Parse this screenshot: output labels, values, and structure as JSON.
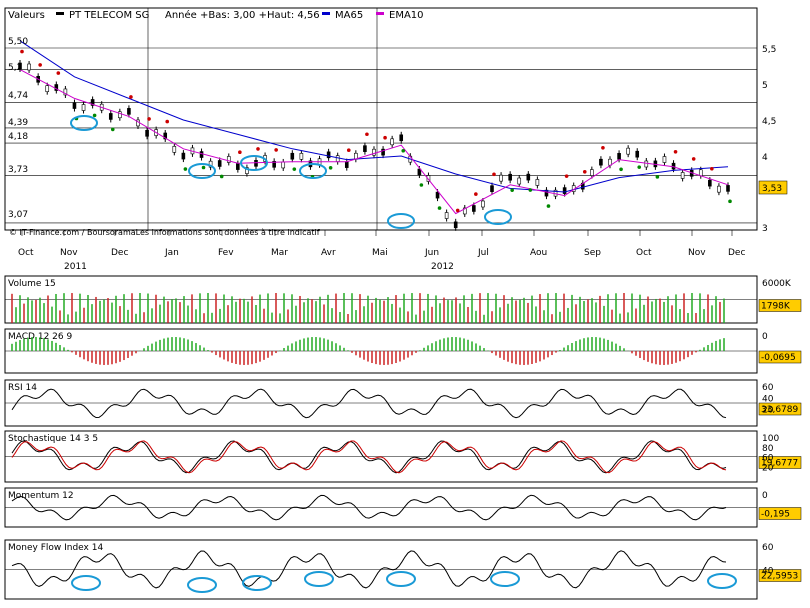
{
  "header": {
    "valeurs_label": "Valeurs",
    "security": "PT TELECOM SG",
    "range_text": "Année +Bas: 3,00 +Haut: 4,56",
    "ma_label": "MA65",
    "ema_label": "EMA10"
  },
  "colors": {
    "candle": "#000000",
    "ma65": "#0000cc",
    "ema10": "#cc00cc",
    "sar_up": "#008800",
    "sar_down": "#cc0000",
    "annotation": "#1a9ad6",
    "value_box": "#ffcc00",
    "volume_up": "#22aa22",
    "volume_down": "#cc2222",
    "volume_ma": "#aa2222"
  },
  "watermark": "© IT-Finance.com / BoursoramaLes informations sont données à titre indicatif",
  "x_axis": {
    "months": [
      "Oct",
      "Nov",
      "Dec",
      "Jan",
      "Fev",
      "Mar",
      "Avr",
      "Mai",
      "Jun",
      "Jul",
      "Aou",
      "Sep",
      "Oct",
      "Nov",
      "Dec"
    ],
    "years": [
      "2011",
      "2012"
    ]
  },
  "price_panel": {
    "left_levels": [
      "5,50",
      "5,2",
      "4,74",
      "4,39",
      "4,18",
      "3,73",
      "3,07"
    ],
    "right_ticks": [
      "5,5",
      "5",
      "4,5",
      "4",
      "3,5",
      "3"
    ],
    "current_value": "3,53"
  },
  "panels": [
    {
      "id": "volume",
      "title": "Volume 15",
      "ticks": [
        "6000K"
      ],
      "value": "1798K"
    },
    {
      "id": "macd",
      "title": "MACD 12 26 9",
      "ticks": [
        "0"
      ],
      "value": "-0,0695"
    },
    {
      "id": "rsi",
      "title": "RSI 14",
      "ticks": [
        "60",
        "40",
        "20"
      ],
      "value": "33,6789"
    },
    {
      "id": "stoch",
      "title": "Stochastique 14 3 5",
      "ticks": [
        "100",
        "80",
        "60",
        "20"
      ],
      "value": "19,6777"
    },
    {
      "id": "momentum",
      "title": "Momentum 12",
      "ticks": [
        "0"
      ],
      "value": "-0,195"
    },
    {
      "id": "mfi",
      "title": "Money Flow Index 14",
      "ticks": [
        "60",
        "40"
      ],
      "value": "22,5953"
    }
  ],
  "chart_data": {
    "type": "line",
    "security": "PT TELECOM SG",
    "period": "Oct 2011 - Nov 2012",
    "price_range": {
      "low": 3.0,
      "high": 4.56
    },
    "ylim": [
      2.95,
      5.75
    ],
    "x": [
      "Oct",
      "Nov",
      "Dec",
      "Jan",
      "Fev",
      "Mar",
      "Avr",
      "Mai",
      "Jun",
      "Jul",
      "Aou",
      "Sep",
      "Oct",
      "Nov"
    ],
    "series": [
      {
        "name": "PT TELECOM SG",
        "values": [
          5.25,
          4.75,
          4.55,
          4.05,
          3.85,
          3.95,
          3.95,
          4.2,
          3.05,
          3.75,
          3.45,
          4.05,
          3.85,
          3.55
        ]
      },
      {
        "name": "MA65",
        "values": [
          5.6,
          5.1,
          4.8,
          4.5,
          4.3,
          4.1,
          3.95,
          4.0,
          3.75,
          3.55,
          3.5,
          3.7,
          3.8,
          3.85
        ]
      },
      {
        "name": "EMA10",
        "values": [
          5.2,
          4.8,
          4.55,
          4.1,
          3.9,
          3.92,
          3.92,
          4.15,
          3.2,
          3.6,
          3.45,
          3.95,
          3.85,
          3.6
        ]
      }
    ],
    "indicators": {
      "volume_last": "1798K",
      "macd_last": -0.0695,
      "rsi_last": 33.6789,
      "stochastic_last": 19.6777,
      "momentum_last": -0.195,
      "mfi_last": 22.5953
    }
  }
}
